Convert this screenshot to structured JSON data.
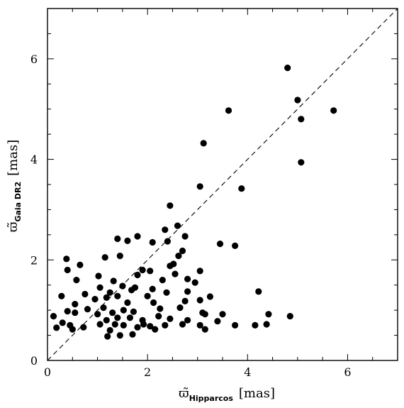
{
  "chart_data": {
    "type": "scatter",
    "xlabel": {
      "symbol": "ϖ̃",
      "subscript": "Hipparcos",
      "unit": "[mas]"
    },
    "ylabel": {
      "symbol": "ϖ̃",
      "subscript": "Gaia DR2",
      "unit": "[mas]"
    },
    "xlim": [
      0,
      7
    ],
    "ylim": [
      0,
      7
    ],
    "xticks": [
      0,
      2,
      4,
      6
    ],
    "yticks": [
      0,
      2,
      4,
      6
    ],
    "x_tick_labels": [
      "0",
      "2",
      "4",
      "6"
    ],
    "y_tick_labels": [
      "0",
      "2",
      "4",
      "6"
    ],
    "grid": false,
    "reference_line": {
      "style": "dashed",
      "y_equals_x": true,
      "from": [
        0,
        0
      ],
      "to": [
        7,
        7
      ]
    },
    "points": [
      [
        4.8,
        5.82
      ],
      [
        5.0,
        5.18
      ],
      [
        5.07,
        4.8
      ],
      [
        5.72,
        4.97
      ],
      [
        5.07,
        3.94
      ],
      [
        3.62,
        4.97
      ],
      [
        3.12,
        4.32
      ],
      [
        3.05,
        3.46
      ],
      [
        3.88,
        3.42
      ],
      [
        2.45,
        3.08
      ],
      [
        2.6,
        2.68
      ],
      [
        2.35,
        2.6
      ],
      [
        2.75,
        2.47
      ],
      [
        3.45,
        2.32
      ],
      [
        3.75,
        2.28
      ],
      [
        1.4,
        2.42
      ],
      [
        1.6,
        2.38
      ],
      [
        1.8,
        2.47
      ],
      [
        2.1,
        2.35
      ],
      [
        2.4,
        2.37
      ],
      [
        2.7,
        2.18
      ],
      [
        2.62,
        2.08
      ],
      [
        2.52,
        1.92
      ],
      [
        0.38,
        2.02
      ],
      [
        0.65,
        1.9
      ],
      [
        1.15,
        2.05
      ],
      [
        1.45,
        2.08
      ],
      [
        0.4,
        1.8
      ],
      [
        1.9,
        1.8
      ],
      [
        2.05,
        1.78
      ],
      [
        1.8,
        1.7
      ],
      [
        2.45,
        1.88
      ],
      [
        2.55,
        1.72
      ],
      [
        3.05,
        1.78
      ],
      [
        2.8,
        1.62
      ],
      [
        0.58,
        1.6
      ],
      [
        1.02,
        1.68
      ],
      [
        1.32,
        1.58
      ],
      [
        1.5,
        1.48
      ],
      [
        1.75,
        1.45
      ],
      [
        2.1,
        1.42
      ],
      [
        2.3,
        1.6
      ],
      [
        2.95,
        1.55
      ],
      [
        0.75,
        1.32
      ],
      [
        1.05,
        1.45
      ],
      [
        1.25,
        1.35
      ],
      [
        1.68,
        1.4
      ],
      [
        2.0,
        1.28
      ],
      [
        2.38,
        1.35
      ],
      [
        2.8,
        1.37
      ],
      [
        3.25,
        1.27
      ],
      [
        4.22,
        1.37
      ],
      [
        0.28,
        1.28
      ],
      [
        0.55,
        1.12
      ],
      [
        0.95,
        1.22
      ],
      [
        1.18,
        1.25
      ],
      [
        1.4,
        1.28
      ],
      [
        1.6,
        1.15
      ],
      [
        2.12,
        1.15
      ],
      [
        2.75,
        1.18
      ],
      [
        3.05,
        1.2
      ],
      [
        0.4,
        0.98
      ],
      [
        0.8,
        1.02
      ],
      [
        1.12,
        1.05
      ],
      [
        1.3,
        0.95
      ],
      [
        1.52,
        1.0
      ],
      [
        1.72,
        0.97
      ],
      [
        2.25,
        1.03
      ],
      [
        2.65,
        1.05
      ],
      [
        3.1,
        0.95
      ],
      [
        0.12,
        0.88
      ],
      [
        0.3,
        0.75
      ],
      [
        0.55,
        0.95
      ],
      [
        1.0,
        0.92
      ],
      [
        1.18,
        0.8
      ],
      [
        1.4,
        0.85
      ],
      [
        1.65,
        0.85
      ],
      [
        1.9,
        0.8
      ],
      [
        2.22,
        0.88
      ],
      [
        2.45,
        0.83
      ],
      [
        2.8,
        0.8
      ],
      [
        3.15,
        0.92
      ],
      [
        3.5,
        0.92
      ],
      [
        4.42,
        0.92
      ],
      [
        4.85,
        0.88
      ],
      [
        0.18,
        0.65
      ],
      [
        0.45,
        0.7
      ],
      [
        0.72,
        0.66
      ],
      [
        1.05,
        0.72
      ],
      [
        1.25,
        0.6
      ],
      [
        1.52,
        0.7
      ],
      [
        1.8,
        0.66
      ],
      [
        2.05,
        0.68
      ],
      [
        2.35,
        0.7
      ],
      [
        2.7,
        0.72
      ],
      [
        3.05,
        0.7
      ],
      [
        3.4,
        0.78
      ],
      [
        3.75,
        0.7
      ],
      [
        4.15,
        0.7
      ],
      [
        4.38,
        0.72
      ],
      [
        0.5,
        0.62
      ],
      [
        1.2,
        0.48
      ],
      [
        1.45,
        0.5
      ],
      [
        1.7,
        0.52
      ],
      [
        3.15,
        0.62
      ],
      [
        1.92,
        0.72
      ],
      [
        2.15,
        0.62
      ],
      [
        1.35,
        0.72
      ]
    ]
  }
}
